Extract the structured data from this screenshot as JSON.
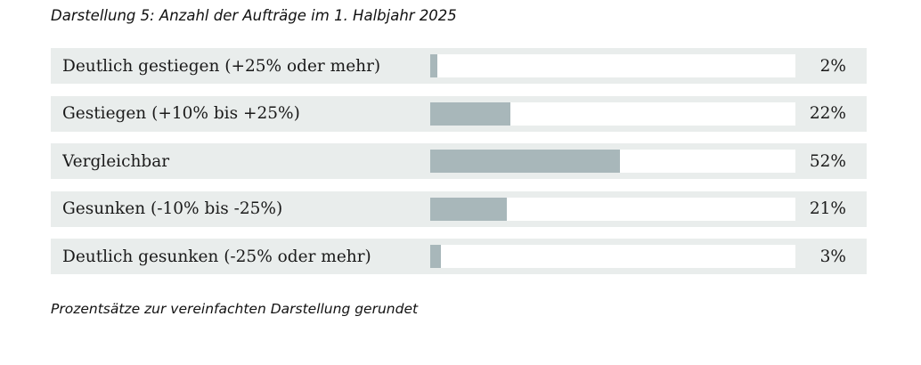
{
  "title": "Darstellung 5: Anzahl der Aufträge im 1. Halbjahr 2025",
  "footnote": "Prozentsätze zur vereinfachten Darstellung gerundet",
  "colors": {
    "row_background": "#e9edec",
    "bar_fill": "#a8b7ba",
    "bar_track": "#ffffff",
    "text": "#1a1a1a"
  },
  "chart_data": {
    "type": "bar",
    "orientation": "horizontal",
    "title": "Darstellung 5: Anzahl der Aufträge im 1. Halbjahr 2025",
    "xlabel": "",
    "ylabel": "",
    "xlim": [
      0,
      100
    ],
    "grid": false,
    "legend": false,
    "categories": [
      "Deutlich gestiegen (+25% oder mehr)",
      "Gestiegen (+10% bis +25%)",
      "Vergleichbar",
      "Gesunken (-10% bis -25%)",
      "Deutlich gesunken (-25% oder mehr)"
    ],
    "values": [
      2,
      22,
      52,
      21,
      3
    ],
    "value_labels": [
      "2%",
      "22%",
      "52%",
      "21%",
      "3%"
    ],
    "annotation": "Prozentsätze zur vereinfachten Darstellung gerundet"
  }
}
